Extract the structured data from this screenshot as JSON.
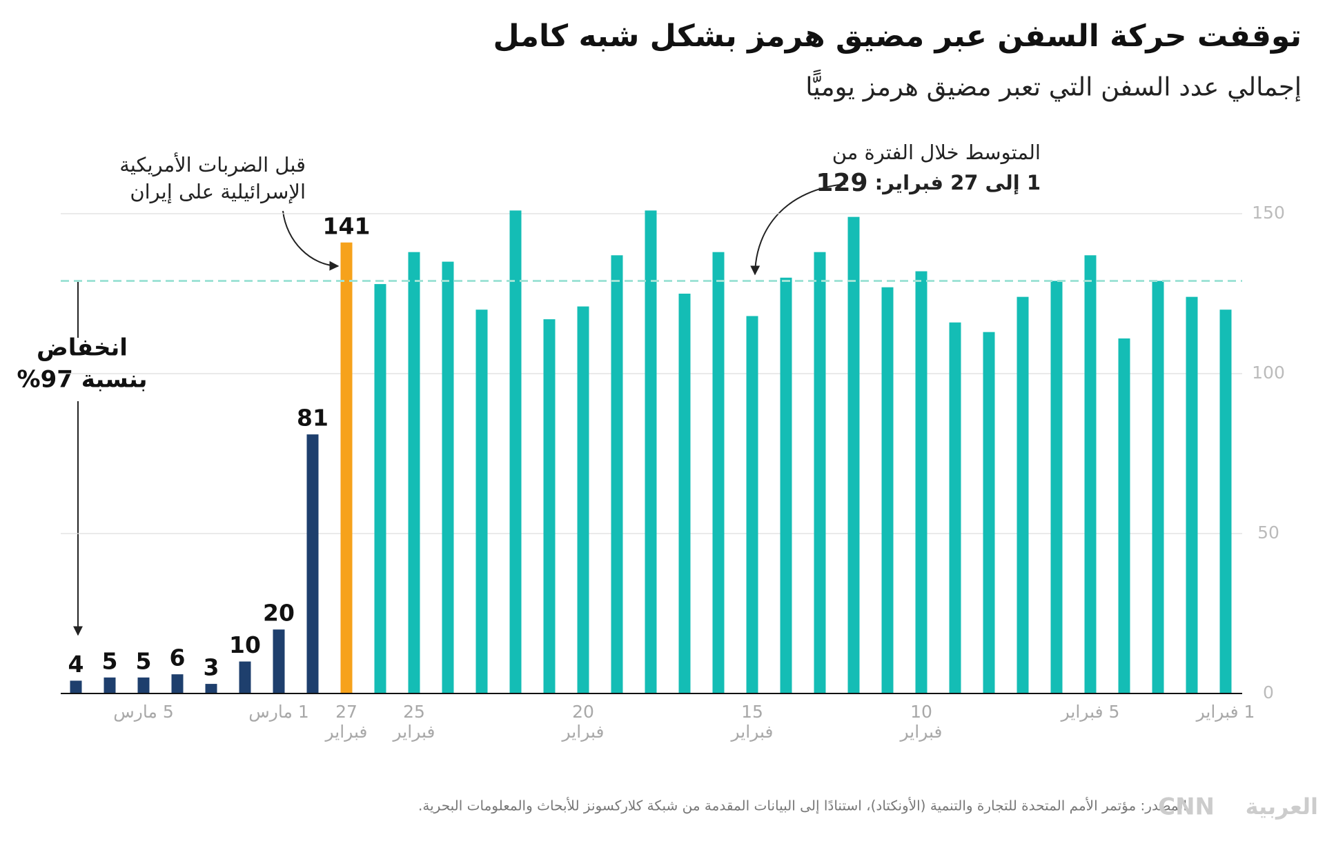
{
  "chart_data": {
    "type": "bar",
    "title": "توقفت حركة السفن عبر مضيق هرمز بشكل شبه كامل",
    "subtitle": "إجمالي عدد السفن التي تعبر مضيق هرمز يوميًّا",
    "categories": [
      "1 فبراير",
      null,
      null,
      null,
      "5 فبراير",
      null,
      null,
      null,
      null,
      "10 فبراير",
      null,
      null,
      null,
      null,
      "15 فبراير",
      null,
      null,
      null,
      null,
      "20 فبراير",
      null,
      null,
      null,
      null,
      "25 فبراير",
      null,
      "27 فبراير",
      null,
      "1 مارس",
      null,
      null,
      null,
      "5 مارس",
      null,
      null
    ],
    "values": [
      120,
      124,
      129,
      111,
      137,
      129,
      124,
      113,
      116,
      132,
      127,
      149,
      138,
      130,
      118,
      138,
      125,
      151,
      137,
      121,
      117,
      151,
      120,
      135,
      138,
      128,
      141,
      81,
      20,
      10,
      3,
      6,
      5,
      5,
      4
    ],
    "value_labels": [
      null,
      null,
      null,
      null,
      null,
      null,
      null,
      null,
      null,
      null,
      null,
      null,
      null,
      null,
      null,
      null,
      null,
      null,
      null,
      null,
      null,
      null,
      null,
      null,
      null,
      null,
      "141",
      "81",
      "20",
      "10",
      "3",
      "6",
      "5",
      "5",
      "4"
    ],
    "colors": [
      "#14bdb5",
      "#14bdb5",
      "#14bdb5",
      "#14bdb5",
      "#14bdb5",
      "#14bdb5",
      "#14bdb5",
      "#14bdb5",
      "#14bdb5",
      "#14bdb5",
      "#14bdb5",
      "#14bdb5",
      "#14bdb5",
      "#14bdb5",
      "#14bdb5",
      "#14bdb5",
      "#14bdb5",
      "#14bdb5",
      "#14bdb5",
      "#14bdb5",
      "#14bdb5",
      "#14bdb5",
      "#14bdb5",
      "#14bdb5",
      "#14bdb5",
      "#14bdb5",
      "#f6a21b",
      "#1e3f6d",
      "#1e3f6d",
      "#1e3f6d",
      "#1e3f6d",
      "#1e3f6d",
      "#1e3f6d",
      "#1e3f6d",
      "#1e3f6d"
    ],
    "ylim": [
      0,
      150
    ],
    "yticks": [
      0,
      50,
      100,
      150
    ],
    "grid": true,
    "average": 129,
    "average_color": "#9fe3d6",
    "annotations": {
      "average_line1": "المتوسط خلال الفترة من",
      "average_line2": "1 إلى 27 فبراير:",
      "before_line1": "قبل الضربات الأمريكية",
      "before_line2": "الإسرائيلية على إيران",
      "drop_line1": "انخفاض",
      "drop_line2": "بنسبة 97%"
    },
    "source": "المصدر: مؤتمر الأمم المتحدة للتجارة والتنمية (الأونكتاد)، استنادًا إلى البيانات المقدمة من شبكة كلاركسونز للأبحاث والمعلومات البحرية.",
    "logo": {
      "brand": "CNN",
      "name": "العربية"
    }
  }
}
